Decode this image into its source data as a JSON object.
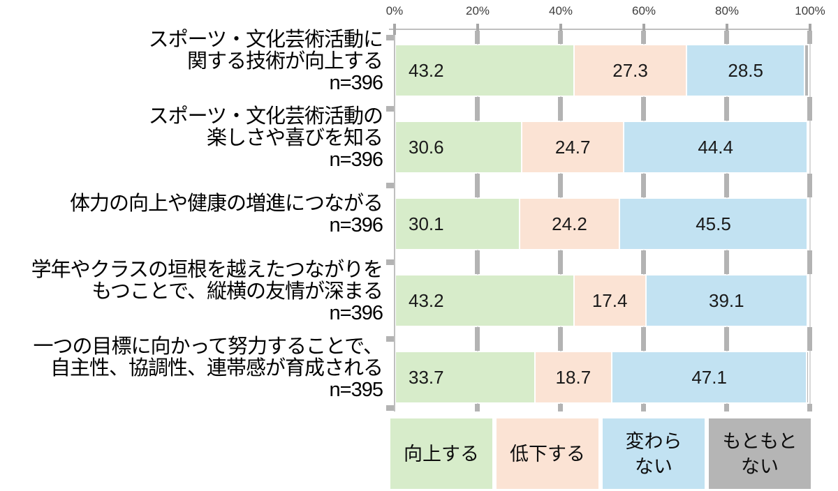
{
  "chart_data": {
    "type": "bar",
    "orientation": "horizontal",
    "stacked": true,
    "title": "",
    "x_axis": {
      "position": "top",
      "range": [
        0,
        100
      ],
      "tick_labels": [
        "0%",
        "20%",
        "40%",
        "60%",
        "80%",
        "100%"
      ],
      "gridlines": true
    },
    "categories": [
      {
        "label_lines": [
          "スポーツ・文化芸術活動に",
          "関する技術が向上する"
        ],
        "n_label": "n=396"
      },
      {
        "label_lines": [
          "スポーツ・文化芸術活動の",
          "楽しさや喜びを知る"
        ],
        "n_label": "n=396"
      },
      {
        "label_lines": [
          "体力の向上や健康の増進につながる"
        ],
        "n_label": "n=396"
      },
      {
        "label_lines": [
          "学年やクラスの垣根を越えたつながりを",
          "もつことで、縦横の友情が深まる"
        ],
        "n_label": "n=396"
      },
      {
        "label_lines": [
          "一つの目標に向かって努力することで、",
          "自主性、協調性、連帯感が育成される"
        ],
        "n_label": "n=395"
      }
    ],
    "series": [
      {
        "name": "向上する",
        "color": "#d7ecca",
        "values": [
          43.2,
          30.6,
          30.1,
          43.2,
          33.7
        ],
        "show_labels": true,
        "label_align": "left"
      },
      {
        "name": "低下する",
        "color": "#fbe3d4",
        "values": [
          27.3,
          24.7,
          24.2,
          17.4,
          18.7
        ],
        "show_labels": true,
        "label_align": "center"
      },
      {
        "name": "変わらない",
        "color": "#c2e2f2",
        "values": [
          28.5,
          44.4,
          45.5,
          39.1,
          47.1
        ],
        "show_labels": true,
        "label_align": "center"
      },
      {
        "name": "もともとない",
        "color": "#b5b5b5",
        "values": [
          1.0,
          0.3,
          0.2,
          0.3,
          0.5
        ],
        "show_labels": false,
        "label_align": "center"
      }
    ],
    "legend": {
      "position": "bottom",
      "items": [
        {
          "label_lines": [
            "向上する"
          ],
          "color": "#d7ecca"
        },
        {
          "label_lines": [
            "低下する"
          ],
          "color": "#fbe3d4"
        },
        {
          "label_lines": [
            "変わら",
            "ない"
          ],
          "color": "#c2e2f2"
        },
        {
          "label_lines": [
            "もともと",
            "ない"
          ],
          "color": "#b5b5b5"
        }
      ]
    }
  },
  "colors": {
    "gridline": "#d9d9d9",
    "axis_line": "#bfbfbf",
    "tick_mark": "#b3b3b3",
    "value_text": "#1a1a1a",
    "label_text": "#000000"
  }
}
